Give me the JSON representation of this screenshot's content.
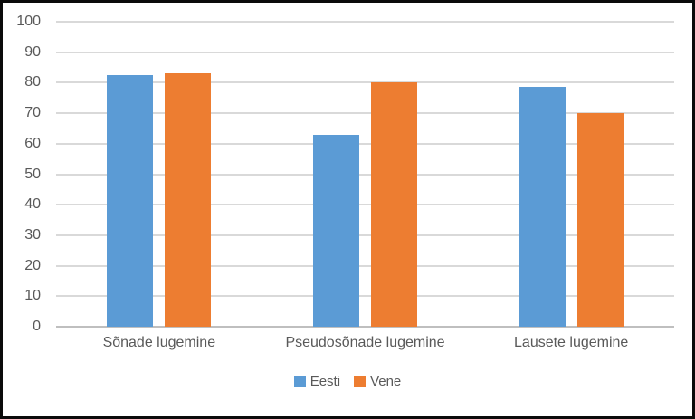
{
  "window": {
    "background": "#ffffff",
    "border_color": "#0a0a0a"
  },
  "chart_data": {
    "type": "bar",
    "title": "",
    "categories": [
      "Sõnade lugemine",
      "Pseudosõnade lugemine",
      "Lausete lugemine"
    ],
    "series": [
      {
        "name": "Eesti",
        "color": "#5B9BD5",
        "values": [
          82.5,
          63,
          78.5
        ]
      },
      {
        "name": "Vene",
        "color": "#ED7D31",
        "values": [
          83,
          80,
          70
        ]
      }
    ],
    "xlabel": "",
    "ylabel": "",
    "ylim": [
      0,
      100
    ],
    "yticks": [
      0,
      10,
      20,
      30,
      40,
      50,
      60,
      70,
      80,
      90,
      100
    ],
    "grid": true,
    "gridline_color": "#D9D9D9",
    "axis_line_color": "#BFBFBF",
    "tick_label_color": "#595959",
    "legend": {
      "position": "bottom",
      "entries": [
        "Eesti",
        "Vene"
      ]
    }
  }
}
